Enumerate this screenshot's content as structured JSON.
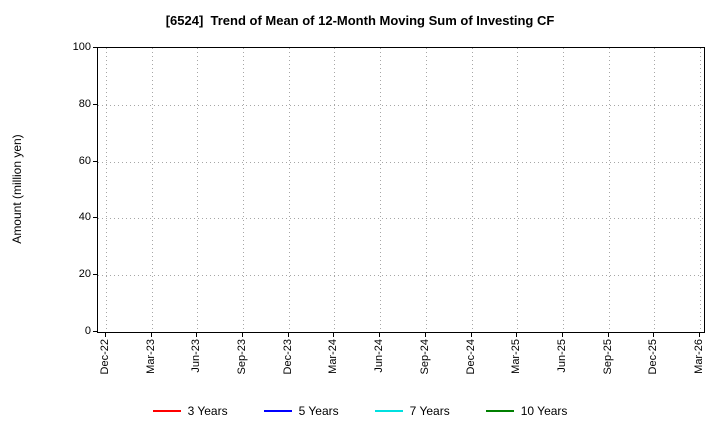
{
  "chart_data": {
    "type": "line",
    "title": "[6524]  Trend of Mean of 12-Month Moving Sum of Investing CF",
    "xlabel": "",
    "ylabel": "Amount (million yen)",
    "ylim": [
      0,
      100
    ],
    "yticks": [
      0,
      20,
      40,
      60,
      80,
      100
    ],
    "categories": [
      "Dec-22",
      "Mar-23",
      "Jun-23",
      "Sep-23",
      "Dec-23",
      "Mar-24",
      "Jun-24",
      "Sep-24",
      "Dec-24",
      "Mar-25",
      "Jun-25",
      "Sep-25",
      "Dec-25",
      "Mar-26"
    ],
    "series": [
      {
        "name": "3 Years",
        "color": "#ff0000",
        "values": []
      },
      {
        "name": "5 Years",
        "color": "#0000ff",
        "values": []
      },
      {
        "name": "7 Years",
        "color": "#00e0e0",
        "values": []
      },
      {
        "name": "10 Years",
        "color": "#007f00",
        "values": []
      }
    ],
    "grid": true,
    "grid_style": "dotted",
    "legend_position": "bottom"
  }
}
